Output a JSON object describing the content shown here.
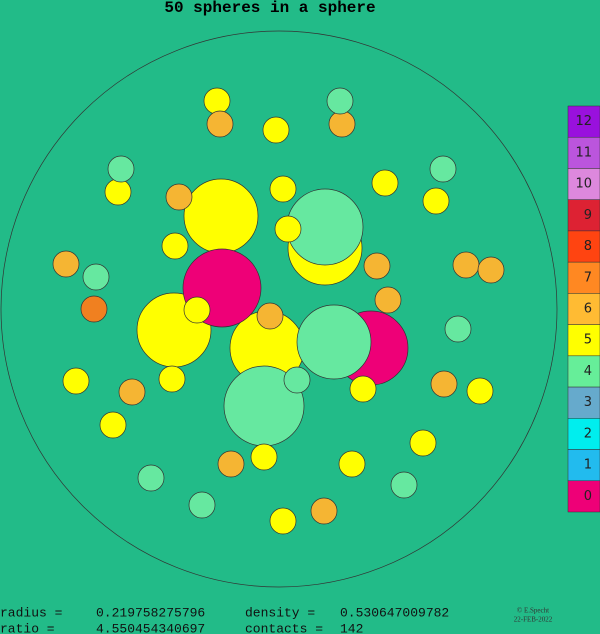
{
  "title": "50 spheres in a sphere",
  "stats": [
    [
      "radius =",
      "0.219758275796",
      "density =",
      "0.530647009782"
    ],
    [
      "ratio =",
      "4.550454340697",
      "contacts =",
      "142"
    ]
  ],
  "legend": [
    {
      "label": "12",
      "color": "#9911dd"
    },
    {
      "label": "11",
      "color": "#bb55dd"
    },
    {
      "label": "10",
      "color": "#dd88dd"
    },
    {
      "label": "9",
      "color": "#dd2233"
    },
    {
      "label": "8",
      "color": "#ff4411"
    },
    {
      "label": "7",
      "color": "#ff8822"
    },
    {
      "label": "6",
      "color": "#ffbb33"
    },
    {
      "label": "5",
      "color": "#ffff00"
    },
    {
      "label": "4",
      "color": "#66ee99"
    },
    {
      "label": "3",
      "color": "#66aacc"
    },
    {
      "label": "2",
      "color": "#00eeee"
    },
    {
      "label": "1",
      "color": "#22bbee"
    },
    {
      "label": "0",
      "color": "#ee0077"
    }
  ],
  "credit": {
    "author": "© E.Specht",
    "date": "22-FEB-2022"
  }
}
